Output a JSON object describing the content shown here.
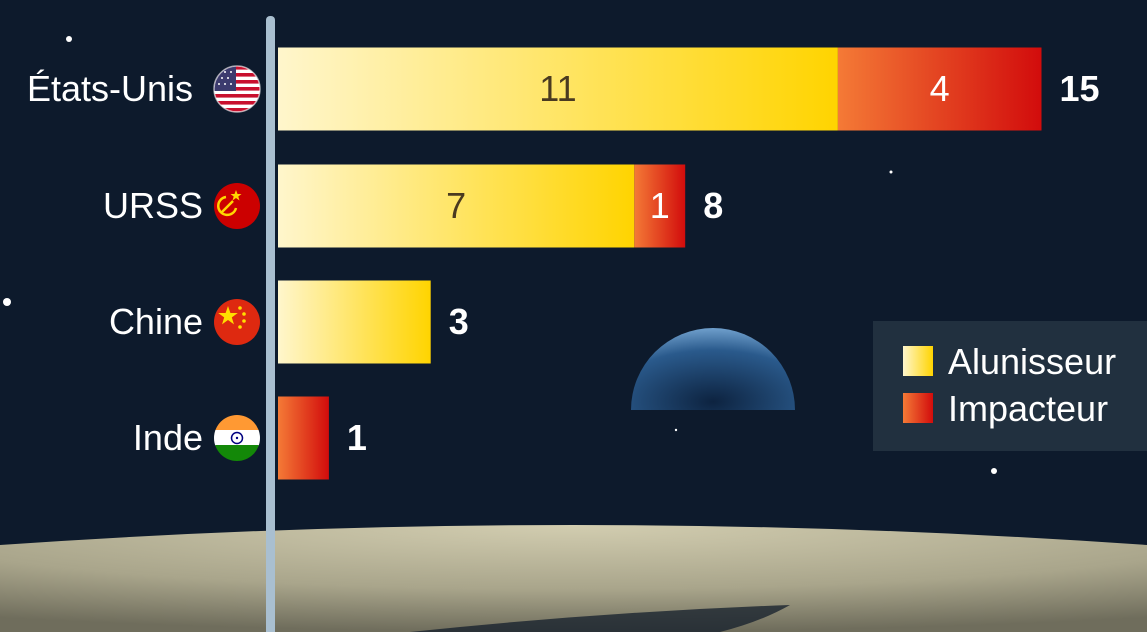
{
  "chart_data": {
    "type": "bar",
    "orientation": "horizontal",
    "stacked": true,
    "categories": [
      "États-Unis",
      "URSS",
      "Chine",
      "Inde"
    ],
    "series": [
      {
        "name": "Alunisseur",
        "values": [
          11,
          7,
          3,
          0
        ],
        "color": "#ffd400"
      },
      {
        "name": "Impacteur",
        "values": [
          4,
          1,
          0,
          1
        ],
        "color": "#e21b1b"
      }
    ],
    "totals": [
      15,
      8,
      3,
      1
    ],
    "xlim": [
      0,
      15
    ],
    "grid": false,
    "legend_position": "right",
    "flags": [
      "us-flag-icon",
      "ussr-flag-icon",
      "china-flag-icon",
      "india-flag-icon"
    ]
  },
  "colors": {
    "background": "#0d1a2c",
    "axis": "#a9bfd0",
    "alunisseur": "#ffd400",
    "impacteur": "#e21b1b",
    "moon_surface": "#b8b398"
  }
}
